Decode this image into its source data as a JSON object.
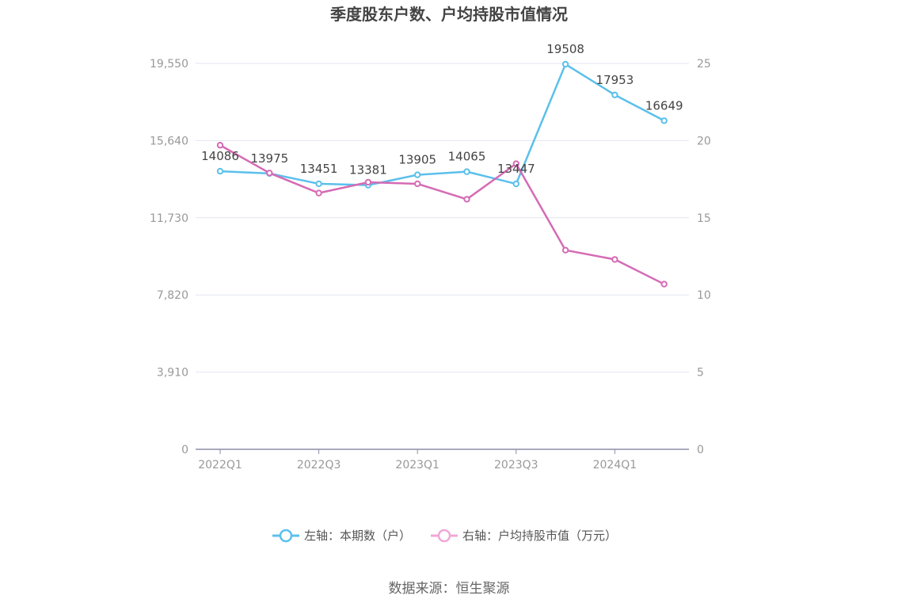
{
  "chart_data": {
    "type": "line",
    "title": "季度股东户数、户均持股市值情况",
    "categories": [
      "2022Q1",
      "2022Q2",
      "2022Q3",
      "2022Q4",
      "2023Q1",
      "2023Q2",
      "2023Q3",
      "2023Q4",
      "2024Q1",
      "2024Q2"
    ],
    "x_tick_labels": [
      "2022Q1",
      "2022Q3",
      "2023Q1",
      "2023Q3",
      "2024Q1"
    ],
    "left_axis": {
      "ticks": [
        "0",
        "3,910",
        "7,820",
        "11,730",
        "15,640",
        "19,550"
      ],
      "min": 0,
      "max": 19550
    },
    "right_axis": {
      "ticks": [
        "0",
        "5",
        "10",
        "15",
        "20",
        "25"
      ],
      "min": 0,
      "max": 25
    },
    "series": [
      {
        "name": "左轴：本期数（户）",
        "axis": "left",
        "color": "#5bc0eb",
        "values": [
          14086,
          13975,
          13451,
          13381,
          13905,
          14065,
          13447,
          19508,
          17953,
          16649
        ],
        "labels": [
          "14086",
          "13975",
          "13451",
          "13381",
          "13905",
          "14065",
          "13447",
          "19508",
          "17953",
          "16649"
        ]
      },
      {
        "name": "右轴：户均持股市值（万元）",
        "axis": "right",
        "color": "#d56bb5",
        "values": [
          19.7,
          17.9,
          16.6,
          17.3,
          17.2,
          16.2,
          18.5,
          12.9,
          12.3,
          10.7
        ]
      }
    ],
    "grid": true,
    "legend_position": "bottom-center"
  },
  "source": "数据来源：恒生聚源"
}
